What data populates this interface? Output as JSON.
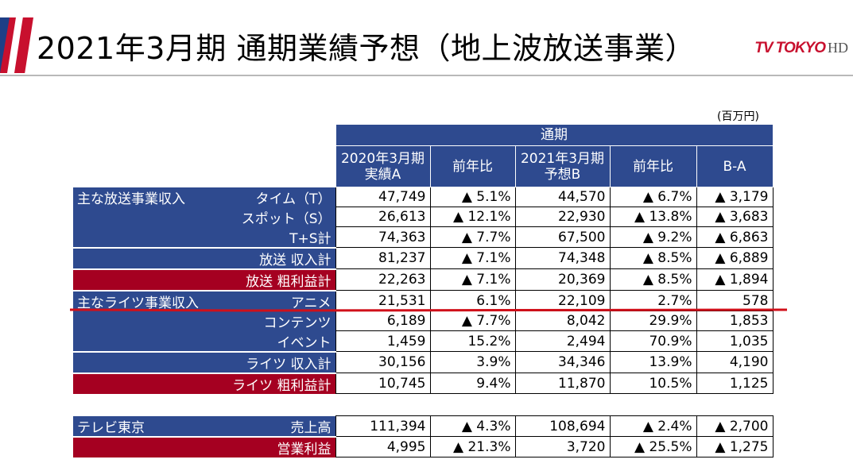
{
  "header": {
    "title": "2021年3月期 通期業績予想（地上波放送事業）",
    "logo_text": "TV TOKYO",
    "logo_suffix": "HD",
    "brand_red": "#c8102e",
    "brand_blue": "#2e4a8f"
  },
  "unit": "(百万円)",
  "table": {
    "group_header": "通期",
    "columns": [
      {
        "line1": "2020年3月期",
        "line2": "実績A"
      },
      {
        "line1": "前年比",
        "line2": ""
      },
      {
        "line1": "2021年3月期",
        "line2": "予想B"
      },
      {
        "line1": "前年比",
        "line2": ""
      },
      {
        "line1": "B-A",
        "line2": ""
      }
    ],
    "rows": [
      {
        "section": "主な放送事業収入",
        "label": "タイム（T）",
        "values": [
          "47,749",
          "▲ 5.1%",
          "44,570",
          "▲ 6.7%",
          "▲ 3,179"
        ]
      },
      {
        "section": "",
        "label": "スポット（S）",
        "values": [
          "26,613",
          "▲ 12.1%",
          "22,930",
          "▲ 13.8%",
          "▲ 3,683"
        ]
      },
      {
        "section": "",
        "label": "T+S計",
        "values": [
          "74,363",
          "▲ 7.7%",
          "67,500",
          "▲ 9.2%",
          "▲ 6,863"
        ]
      },
      {
        "section": "",
        "label": "放送 収入計",
        "values": [
          "81,237",
          "▲ 7.1%",
          "74,348",
          "▲ 8.5%",
          "▲ 6,889"
        ]
      },
      {
        "section": "",
        "label": "放送 粗利益計",
        "values": [
          "22,263",
          "▲ 7.1%",
          "20,369",
          "▲ 8.5%",
          "▲ 1,894"
        ]
      },
      {
        "section": "主なライツ事業収入",
        "label": "アニメ",
        "values": [
          "21,531",
          "6.1%",
          "22,109",
          "2.7%",
          "578"
        ]
      },
      {
        "section": "",
        "label": "コンテンツ",
        "values": [
          "6,189",
          "▲ 7.7%",
          "8,042",
          "29.9%",
          "1,853"
        ]
      },
      {
        "section": "",
        "label": "イベント",
        "values": [
          "1,459",
          "15.2%",
          "2,494",
          "70.9%",
          "1,035"
        ]
      },
      {
        "section": "",
        "label": "ライツ 収入計",
        "values": [
          "30,156",
          "3.9%",
          "34,346",
          "13.9%",
          "4,190"
        ]
      },
      {
        "section": "",
        "label": "ライツ 粗利益計",
        "values": [
          "10,745",
          "9.4%",
          "11,870",
          "10.5%",
          "1,125"
        ]
      },
      {
        "section": "テレビ東京",
        "label": "売上高",
        "values": [
          "111,394",
          "▲ 4.3%",
          "108,694",
          "▲ 2.4%",
          "▲ 2,700"
        ]
      },
      {
        "section": "",
        "label": "営業利益",
        "values": [
          "4,995",
          "▲ 21.3%",
          "3,720",
          "▲ 25.5%",
          "▲ 1,275"
        ]
      }
    ]
  }
}
